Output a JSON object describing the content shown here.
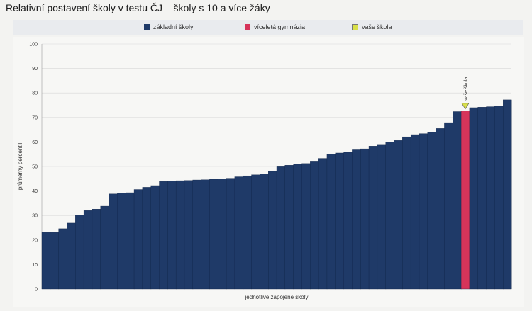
{
  "title": "Relativní postavení školy v testu ČJ – školy s 10 a více žáky",
  "legend": [
    {
      "label": "základní školy",
      "color": "#1f3a68",
      "icon": "square"
    },
    {
      "label": "víceletá gymnázia",
      "color": "#d6345a",
      "icon": "square"
    },
    {
      "label": "vaše škola",
      "color": "#d9e04a",
      "icon": "square"
    }
  ],
  "chart_data": {
    "type": "bar",
    "title": "Relativní postavení školy v testu ČJ – školy s 10 a více žáky",
    "xlabel": "jednotlivé zapojené školy",
    "ylabel": "průměrný percentil",
    "ylim": [
      0,
      100
    ],
    "yticks": [
      0,
      10,
      20,
      30,
      40,
      50,
      60,
      70,
      80,
      90,
      100
    ],
    "grid": true,
    "legend_position": "top",
    "series": [
      {
        "name": "základní školy",
        "color": "#1f3a68",
        "values": [
          23.1,
          23.1,
          24.6,
          26.9,
          30.2,
          32.0,
          32.6,
          33.8,
          38.8,
          39.2,
          39.3,
          40.6,
          41.5,
          42.2,
          43.9,
          44.0,
          44.2,
          44.3,
          44.5,
          44.6,
          44.8,
          44.9,
          45.2,
          45.8,
          46.2,
          46.6,
          47.0,
          48.0,
          49.9,
          50.5,
          50.9,
          51.2,
          52.2,
          53.3,
          55.0,
          55.5,
          55.8,
          56.8,
          57.2,
          58.3,
          59.0,
          59.9,
          60.6,
          62.1,
          63.0,
          63.4,
          63.9,
          65.5,
          67.9,
          72.4,
          72.6,
          74.0,
          74.2,
          74.4,
          74.6,
          77.2
        ]
      }
    ],
    "highlight": [
      {
        "index": 50,
        "name": "víceletá gymnázia",
        "color": "#d6345a"
      }
    ],
    "marker": {
      "index": 50,
      "label": "vaše škola",
      "color": "#d9e04a",
      "shape": "down-triangle"
    }
  }
}
